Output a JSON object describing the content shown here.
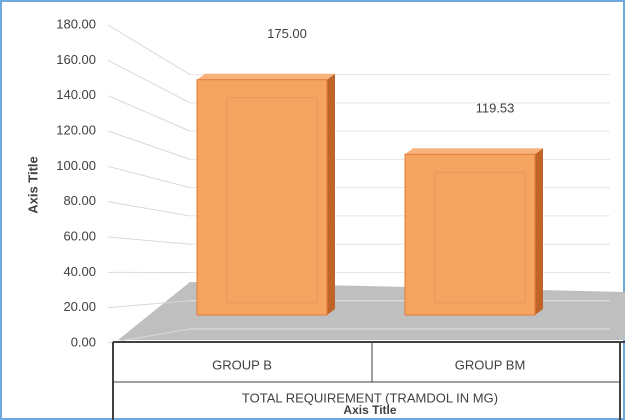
{
  "chart_data": {
    "type": "bar3d",
    "categories": [
      "GROUP B",
      "GROUP BM"
    ],
    "values": [
      175,
      119.53
    ],
    "value_labels": [
      "175.00",
      "119.53"
    ],
    "color": "#f4a460",
    "x_group_label": "TOTAL REQUIREMENT (TRAMDOL IN MG)",
    "x_axis_label": "Axis Title",
    "y_axis_label": "Axis Title",
    "ylim": [
      0,
      180
    ],
    "yticks": [
      {
        "value": 0,
        "label": "0.00"
      },
      {
        "value": 20,
        "label": "20.00"
      },
      {
        "value": 40,
        "label": "40.00"
      },
      {
        "value": 60,
        "label": "60.00"
      },
      {
        "value": 80,
        "label": "80.00"
      },
      {
        "value": 100,
        "label": "100.00"
      },
      {
        "value": 120,
        "label": "120.00"
      },
      {
        "value": 140,
        "label": "140.00"
      },
      {
        "value": 160,
        "label": "160.00"
      },
      {
        "value": 180,
        "label": "180.00"
      }
    ],
    "grid": true
  }
}
